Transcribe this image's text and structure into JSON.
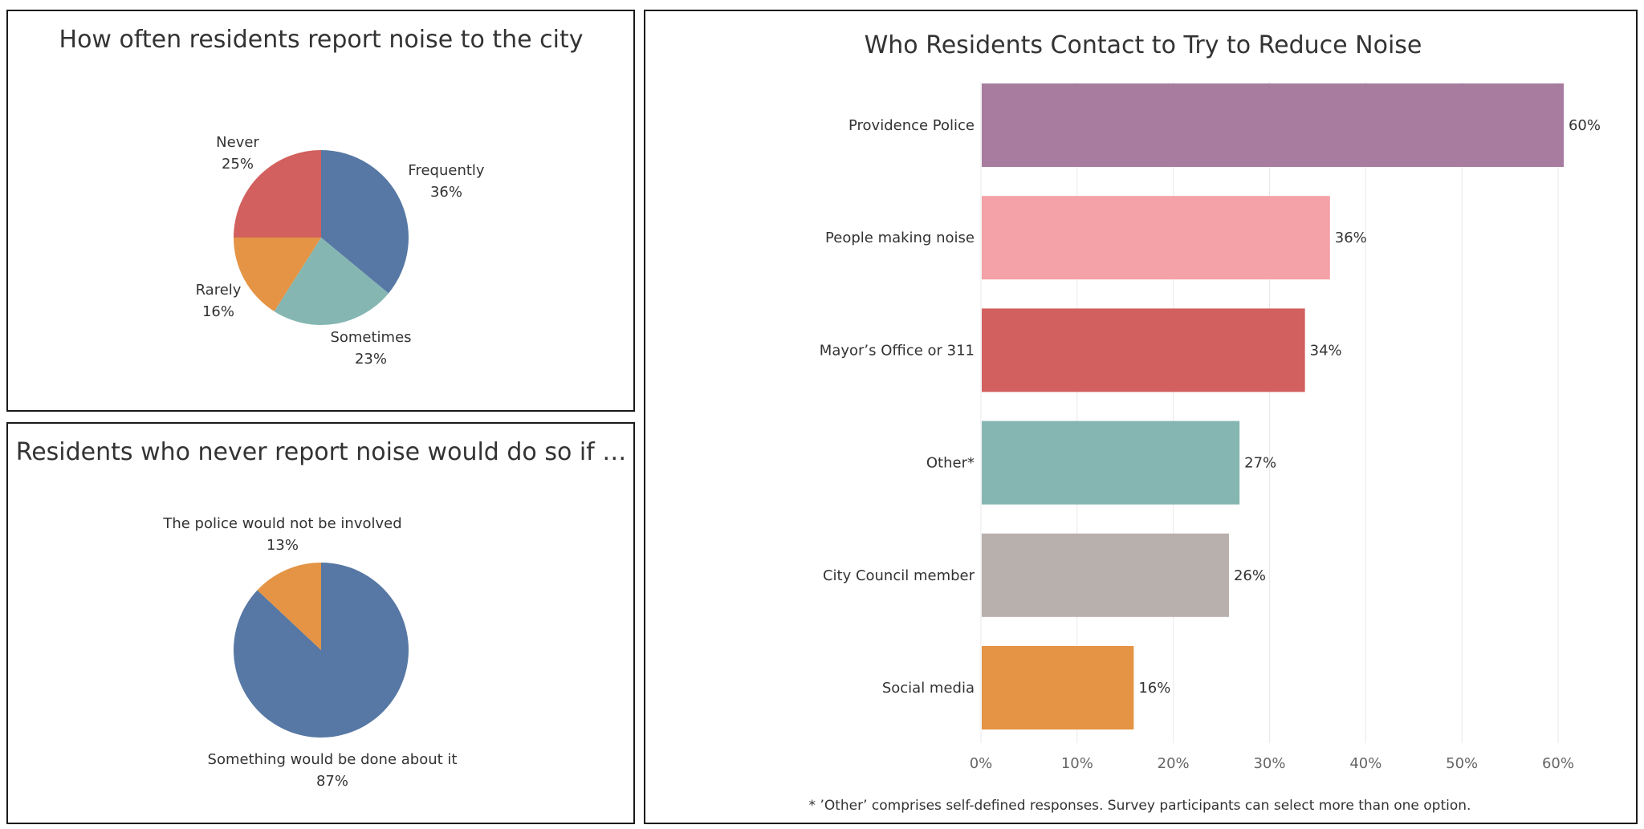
{
  "colors": {
    "blue": "#5778a4",
    "red": "#d1605e",
    "orange": "#e49444",
    "teal": "#85b6b2",
    "purple": "#a77c9f",
    "pink": "#f4a1a7",
    "taupe": "#b8b0ac",
    "text": "#333333",
    "grid": "#e8e8e8",
    "border": "#1a1a1a"
  },
  "chart_data": [
    {
      "type": "pie",
      "title": "How often residents report noise to the city",
      "categories": [
        "Frequently",
        "Sometimes",
        "Rarely",
        "Never"
      ],
      "values": [
        36,
        23,
        16,
        25
      ],
      "labels": [
        "36%",
        "23%",
        "16%",
        "25%"
      ],
      "colors": [
        "#5778a4",
        "#85b6b2",
        "#e49444",
        "#d1605e"
      ]
    },
    {
      "type": "pie",
      "title": "Residents who never report noise would do so if …",
      "categories": [
        "Something would be done about it",
        "The police would not be involved"
      ],
      "values": [
        87,
        13
      ],
      "labels": [
        "87%",
        "13%"
      ],
      "colors": [
        "#5778a4",
        "#e49444"
      ]
    },
    {
      "type": "bar",
      "orientation": "horizontal",
      "title": "Who Residents Contact to Try to Reduce Noise",
      "categories": [
        "Providence Police",
        "People making noise",
        "Mayor’s Office or 311",
        "Other*",
        "City Council member",
        "Social media"
      ],
      "values": [
        60.5,
        36.2,
        33.6,
        26.8,
        25.7,
        15.8
      ],
      "labels": [
        "60%",
        "36%",
        "34%",
        "27%",
        "26%",
        "16%"
      ],
      "colors": [
        "#a77c9f",
        "#f4a1a7",
        "#d1605e",
        "#85b6b2",
        "#b8b0ac",
        "#e49444"
      ],
      "xlim": [
        0,
        60
      ],
      "xticks": [
        "0%",
        "10%",
        "20%",
        "30%",
        "40%",
        "50%",
        "60%"
      ],
      "xlabel": "",
      "ylabel": "",
      "grid": "vertical",
      "note": "* ’Other’ comprises self-defined responses. Survey participants can select more than one option."
    }
  ]
}
